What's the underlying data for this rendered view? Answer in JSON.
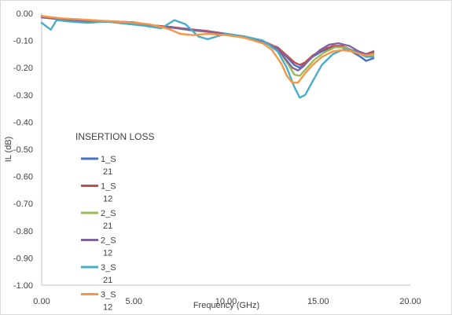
{
  "chart_data": {
    "type": "line",
    "title": "INSERTION LOSS",
    "xlabel": "Frequency (GHz)",
    "ylabel": "IL (dB)",
    "xlim": [
      0,
      20
    ],
    "ylim": [
      -1.0,
      0.0
    ],
    "x_ticks": [
      "0.00",
      "5.00",
      "10.00",
      "15.00",
      "20.00"
    ],
    "y_ticks": [
      "0.00",
      "-0.10",
      "-0.20",
      "-0.30",
      "-0.40",
      "-0.50",
      "-0.60",
      "-0.70",
      "-0.80",
      "-0.90",
      "-1.00"
    ],
    "grid": false,
    "legend_position": "left",
    "series": [
      {
        "name": "1_S21",
        "name_lines": [
          "1_S",
          "21"
        ],
        "color": "#4472C4",
        "points": [
          [
            0,
            -0.01
          ],
          [
            1,
            -0.02
          ],
          [
            2,
            -0.025
          ],
          [
            3,
            -0.028
          ],
          [
            4,
            -0.03
          ],
          [
            5,
            -0.033
          ],
          [
            6,
            -0.045
          ],
          [
            7,
            -0.05
          ],
          [
            8,
            -0.06
          ],
          [
            9,
            -0.065
          ],
          [
            10,
            -0.075
          ],
          [
            11,
            -0.085
          ],
          [
            12,
            -0.105
          ],
          [
            12.8,
            -0.13
          ],
          [
            13.3,
            -0.16
          ],
          [
            13.7,
            -0.19
          ],
          [
            14.0,
            -0.2
          ],
          [
            14.3,
            -0.185
          ],
          [
            14.7,
            -0.16
          ],
          [
            15.2,
            -0.14
          ],
          [
            15.8,
            -0.125
          ],
          [
            16.3,
            -0.125
          ],
          [
            16.8,
            -0.14
          ],
          [
            17.3,
            -0.16
          ],
          [
            17.6,
            -0.175
          ],
          [
            18,
            -0.165
          ]
        ]
      },
      {
        "name": "1_S12",
        "name_lines": [
          "1_S",
          "12"
        ],
        "color": "#C0504D",
        "points": [
          [
            0,
            -0.01
          ],
          [
            1,
            -0.02
          ],
          [
            2,
            -0.024
          ],
          [
            3,
            -0.027
          ],
          [
            4,
            -0.03
          ],
          [
            5,
            -0.033
          ],
          [
            6,
            -0.044
          ],
          [
            7,
            -0.05
          ],
          [
            8,
            -0.058
          ],
          [
            9,
            -0.065
          ],
          [
            10,
            -0.075
          ],
          [
            11,
            -0.085
          ],
          [
            12,
            -0.102
          ],
          [
            12.8,
            -0.125
          ],
          [
            13.3,
            -0.155
          ],
          [
            13.7,
            -0.18
          ],
          [
            14.0,
            -0.19
          ],
          [
            14.3,
            -0.18
          ],
          [
            14.7,
            -0.155
          ],
          [
            15.2,
            -0.135
          ],
          [
            15.8,
            -0.12
          ],
          [
            16.3,
            -0.12
          ],
          [
            16.8,
            -0.135
          ],
          [
            17.3,
            -0.145
          ],
          [
            17.6,
            -0.15
          ],
          [
            18,
            -0.14
          ]
        ]
      },
      {
        "name": "2_S21",
        "name_lines": [
          "2_S",
          "21"
        ],
        "color": "#9BBB59",
        "points": [
          [
            0,
            -0.015
          ],
          [
            1,
            -0.022
          ],
          [
            2,
            -0.026
          ],
          [
            3,
            -0.03
          ],
          [
            4,
            -0.032
          ],
          [
            5,
            -0.036
          ],
          [
            6,
            -0.048
          ],
          [
            7,
            -0.052
          ],
          [
            8,
            -0.062
          ],
          [
            9,
            -0.068
          ],
          [
            10,
            -0.078
          ],
          [
            11,
            -0.09
          ],
          [
            12,
            -0.105
          ],
          [
            12.6,
            -0.12
          ],
          [
            13.0,
            -0.15
          ],
          [
            13.4,
            -0.19
          ],
          [
            13.7,
            -0.225
          ],
          [
            14.0,
            -0.23
          ],
          [
            14.4,
            -0.2
          ],
          [
            14.8,
            -0.17
          ],
          [
            15.3,
            -0.145
          ],
          [
            15.9,
            -0.125
          ],
          [
            16.4,
            -0.125
          ],
          [
            16.9,
            -0.14
          ],
          [
            17.4,
            -0.15
          ],
          [
            18,
            -0.155
          ]
        ]
      },
      {
        "name": "2_S12",
        "name_lines": [
          "2_S",
          "12"
        ],
        "color": "#8064A2",
        "points": [
          [
            0,
            -0.015
          ],
          [
            1,
            -0.022
          ],
          [
            2,
            -0.026
          ],
          [
            3,
            -0.03
          ],
          [
            4,
            -0.032
          ],
          [
            5,
            -0.035
          ],
          [
            6,
            -0.047
          ],
          [
            7,
            -0.052
          ],
          [
            8,
            -0.06
          ],
          [
            9,
            -0.067
          ],
          [
            10,
            -0.077
          ],
          [
            11,
            -0.088
          ],
          [
            12,
            -0.103
          ],
          [
            12.8,
            -0.13
          ],
          [
            13.2,
            -0.165
          ],
          [
            13.6,
            -0.2
          ],
          [
            13.9,
            -0.21
          ],
          [
            14.2,
            -0.195
          ],
          [
            14.6,
            -0.165
          ],
          [
            15.1,
            -0.135
          ],
          [
            15.6,
            -0.115
          ],
          [
            16.1,
            -0.11
          ],
          [
            16.7,
            -0.12
          ],
          [
            17.2,
            -0.14
          ],
          [
            17.6,
            -0.15
          ],
          [
            18,
            -0.145
          ]
        ]
      },
      {
        "name": "3_S21",
        "name_lines": [
          "3_S",
          "21"
        ],
        "color": "#4BACC6",
        "points": [
          [
            0,
            -0.035
          ],
          [
            0.5,
            -0.06
          ],
          [
            0.8,
            -0.025
          ],
          [
            1.5,
            -0.03
          ],
          [
            2.5,
            -0.035
          ],
          [
            3.5,
            -0.03
          ],
          [
            4.5,
            -0.038
          ],
          [
            5.5,
            -0.045
          ],
          [
            6.5,
            -0.055
          ],
          [
            7.2,
            -0.025
          ],
          [
            7.8,
            -0.04
          ],
          [
            8.5,
            -0.085
          ],
          [
            9.0,
            -0.095
          ],
          [
            9.5,
            -0.085
          ],
          [
            10,
            -0.075
          ],
          [
            11,
            -0.085
          ],
          [
            12,
            -0.1
          ],
          [
            12.8,
            -0.14
          ],
          [
            13.3,
            -0.2
          ],
          [
            13.7,
            -0.27
          ],
          [
            14.0,
            -0.31
          ],
          [
            14.3,
            -0.3
          ],
          [
            14.7,
            -0.25
          ],
          [
            15.2,
            -0.19
          ],
          [
            15.8,
            -0.15
          ],
          [
            16.3,
            -0.135
          ],
          [
            16.8,
            -0.135
          ],
          [
            17.3,
            -0.15
          ],
          [
            17.6,
            -0.16
          ],
          [
            18,
            -0.16
          ]
        ]
      },
      {
        "name": "3_S12",
        "name_lines": [
          "3_S",
          "12"
        ],
        "color": "#F79646",
        "points": [
          [
            0,
            -0.01
          ],
          [
            1,
            -0.018
          ],
          [
            2,
            -0.022
          ],
          [
            3,
            -0.026
          ],
          [
            4,
            -0.03
          ],
          [
            5,
            -0.034
          ],
          [
            5.8,
            -0.04
          ],
          [
            6.5,
            -0.05
          ],
          [
            7,
            -0.06
          ],
          [
            7.5,
            -0.075
          ],
          [
            8.2,
            -0.08
          ],
          [
            9,
            -0.075
          ],
          [
            10,
            -0.08
          ],
          [
            11,
            -0.09
          ],
          [
            12,
            -0.11
          ],
          [
            12.5,
            -0.135
          ],
          [
            13.0,
            -0.185
          ],
          [
            13.3,
            -0.23
          ],
          [
            13.6,
            -0.255
          ],
          [
            13.9,
            -0.255
          ],
          [
            14.3,
            -0.22
          ],
          [
            14.7,
            -0.19
          ],
          [
            15.2,
            -0.16
          ],
          [
            15.8,
            -0.14
          ],
          [
            16.3,
            -0.135
          ],
          [
            16.8,
            -0.14
          ],
          [
            17.3,
            -0.15
          ],
          [
            17.6,
            -0.155
          ],
          [
            18,
            -0.15
          ]
        ]
      }
    ]
  }
}
